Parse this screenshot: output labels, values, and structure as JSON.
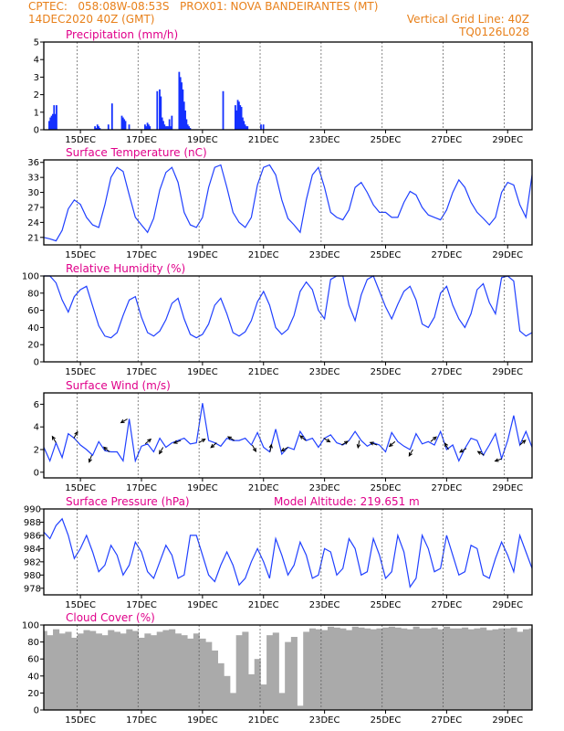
{
  "header": {
    "line1_left": "CPTEC:   058:08W-08:53S   PROX01: NOVA BANDEIRANTES (MT)",
    "line2_left": "14DEC2020 40Z (GMT)",
    "line2_right": "Vertical Grid Line: 40Z",
    "line3_right": "TQ0126L028"
  },
  "x_ticks": [
    "15DEC",
    "17DEC",
    "19DEC",
    "21DEC",
    "23DEC",
    "25DEC",
    "27DEC",
    "29DEC"
  ],
  "colors": {
    "series": "#2040ff",
    "precip": "#1430ff",
    "cloud": "#aaaaaa",
    "title": "#e0008a",
    "header": "#e8801a",
    "grid": "#555555"
  },
  "chart_data": [
    {
      "type": "bar",
      "title": "Precipitation (mm/h)",
      "ylim": [
        0,
        5
      ],
      "yticks": [
        0,
        1,
        2,
        3,
        4,
        5
      ],
      "t": [
        0.45,
        0.55,
        0.65,
        0.75,
        0.85,
        0.95,
        1.05,
        4.2,
        4.3,
        4.4,
        4.5,
        4.6,
        5.3,
        5.6,
        6.4,
        6.5,
        6.6,
        6.7,
        7.0,
        8.3,
        8.4,
        8.5,
        8.6,
        8.7,
        9.3,
        9.5,
        9.6,
        9.7,
        9.8,
        9.9,
        10.0,
        10.1,
        10.2,
        10.3,
        10.4,
        10.5,
        11.1,
        11.2,
        11.3,
        11.4,
        11.5,
        11.6,
        11.7,
        11.8,
        11.9,
        12.0,
        14.7,
        15.7,
        15.8,
        15.9,
        16.0,
        16.1,
        16.2,
        16.3,
        16.4,
        16.5,
        16.6,
        16.7,
        17.8,
        18.0
      ],
      "values": [
        0.5,
        0.7,
        0.8,
        0.9,
        1.4,
        0.9,
        1.4,
        0.2,
        0.1,
        0.3,
        0.2,
        0.1,
        0.3,
        1.5,
        0.8,
        0.7,
        0.6,
        0.5,
        0.3,
        0.3,
        0.2,
        0.4,
        0.3,
        0.2,
        2.2,
        2.3,
        1.9,
        0.7,
        0.5,
        0.3,
        0.2,
        0.2,
        0.2,
        0.6,
        0.2,
        0.8,
        3.3,
        3.0,
        2.7,
        2.3,
        1.6,
        1.1,
        0.6,
        0.3,
        0.2,
        0.1,
        2.2,
        1.4,
        1.1,
        1.7,
        1.6,
        1.4,
        1.3,
        0.7,
        0.5,
        0.3,
        0.2,
        0.2,
        0.3,
        0.3
      ]
    },
    {
      "type": "line",
      "title": "Surface Temperature (nC)",
      "ylim": [
        19.5,
        36.5
      ],
      "yticks": [
        21,
        24,
        27,
        30,
        33,
        36
      ],
      "t": [
        0,
        0.5,
        1.0,
        1.5,
        2.0,
        2.5,
        3.0,
        3.5,
        4.0,
        4.5,
        5.0,
        5.5,
        6.0,
        6.5,
        7.0,
        7.5,
        8.0,
        8.5,
        9.0,
        9.5,
        10.0,
        10.5,
        11.0,
        11.5,
        12.0,
        12.5,
        13.0,
        13.5,
        14.0,
        14.5,
        15.0,
        15.5,
        16.0,
        16.5,
        17.0,
        17.5,
        18.0,
        18.5,
        19.0,
        19.5,
        20.0,
        20.5,
        21.0,
        21.5,
        22.0,
        22.5,
        23.0,
        23.5,
        24.0,
        24.5,
        25.0,
        25.5,
        26.0,
        26.5,
        27.0,
        27.5,
        28.0,
        28.5,
        29.0,
        29.5,
        30.0,
        30.5,
        31.0,
        31.5,
        32.0,
        32.5,
        33.0,
        33.5,
        34.0,
        34.5,
        35.0,
        35.5,
        36.0,
        36.5,
        37.0,
        37.5,
        38.0,
        38.5,
        39.0,
        39.5,
        40.0
      ],
      "values": [
        21.0,
        20.7,
        20.3,
        22.4,
        26.7,
        28.5,
        27.6,
        25.0,
        23.5,
        23.0,
        27.5,
        33.0,
        35.0,
        34.2,
        29.5,
        25.0,
        23.5,
        22.0,
        24.8,
        30.5,
        34.0,
        35.0,
        32.0,
        26.0,
        23.5,
        23.0,
        25.0,
        31.0,
        35.0,
        35.5,
        31.0,
        26.0,
        24.0,
        23.0,
        25.0,
        31.5,
        35.0,
        35.5,
        33.5,
        28.5,
        24.8,
        23.5,
        22.0,
        28.5,
        33.5,
        35.0,
        31.0,
        26.0,
        25.0,
        24.5,
        26.5,
        31.0,
        32.0,
        30.0,
        27.5,
        26.0,
        26.0,
        25.0,
        25.0,
        28.0,
        30.2,
        29.5,
        27.0,
        25.5,
        25.0,
        24.5,
        26.5,
        30.0,
        32.5,
        31.0,
        28.0,
        26.0,
        24.8,
        23.5,
        25.0,
        30.0,
        32.0,
        31.5,
        27.5,
        25.0,
        33.5
      ]
    },
    {
      "type": "line",
      "title": "Relative Humidity (%)",
      "ylim": [
        0,
        100
      ],
      "yticks": [
        0,
        20,
        40,
        60,
        80,
        100
      ],
      "t": [
        0,
        0.5,
        1.0,
        1.5,
        2.0,
        2.5,
        3.0,
        3.5,
        4.0,
        4.5,
        5.0,
        5.5,
        6.0,
        6.5,
        7.0,
        7.5,
        8.0,
        8.5,
        9.0,
        9.5,
        10.0,
        10.5,
        11.0,
        11.5,
        12.0,
        12.5,
        13.0,
        13.5,
        14.0,
        14.5,
        15.0,
        15.5,
        16.0,
        16.5,
        17.0,
        17.5,
        18.0,
        18.5,
        19.0,
        19.5,
        20.0,
        20.5,
        21.0,
        21.5,
        22.0,
        22.5,
        23.0,
        23.5,
        24.0,
        24.5,
        25.0,
        25.5,
        26.0,
        26.5,
        27.0,
        27.5,
        28.0,
        28.5,
        29.0,
        29.5,
        30.0,
        30.5,
        31.0,
        31.5,
        32.0,
        32.5,
        33.0,
        33.5,
        34.0,
        34.5,
        35.0,
        35.5,
        36.0,
        36.5,
        37.0,
        37.5,
        38.0,
        38.5,
        39.0,
        39.5,
        40.0
      ],
      "values": [
        100,
        100,
        92,
        72,
        58,
        76,
        84,
        88,
        65,
        42,
        30,
        28,
        34,
        54,
        72,
        76,
        52,
        34,
        30,
        36,
        49,
        68,
        74,
        50,
        32,
        28,
        32,
        44,
        66,
        74,
        56,
        34,
        30,
        35,
        48,
        70,
        82,
        66,
        40,
        32,
        38,
        54,
        82,
        93,
        84,
        60,
        50,
        96,
        100,
        100,
        66,
        48,
        78,
        96,
        100,
        82,
        64,
        50,
        67,
        82,
        88,
        72,
        44,
        40,
        52,
        80,
        88,
        66,
        50,
        40,
        56,
        84,
        91,
        69,
        56,
        98,
        100,
        94,
        36,
        30,
        34
      ]
    },
    {
      "type": "line",
      "title": "Surface Wind (m/s)",
      "ylim": [
        -0.5,
        7
      ],
      "yticks": [
        0,
        2,
        4,
        6
      ],
      "t": [
        0,
        0.5,
        1.0,
        1.5,
        2.0,
        2.5,
        3.0,
        3.5,
        4.0,
        4.5,
        5.0,
        5.5,
        6.0,
        6.5,
        7.0,
        7.5,
        8.0,
        8.5,
        9.0,
        9.5,
        10.0,
        10.5,
        11.0,
        11.5,
        12.0,
        12.5,
        13.0,
        13.5,
        14.0,
        14.5,
        15.0,
        15.5,
        16.0,
        16.5,
        17.0,
        17.5,
        18.0,
        18.5,
        19.0,
        19.5,
        20.0,
        20.5,
        21.0,
        21.5,
        22.0,
        22.5,
        23.0,
        23.5,
        24.0,
        24.5,
        25.0,
        25.5,
        26.0,
        26.5,
        27.0,
        27.5,
        28.0,
        28.5,
        29.0,
        29.5,
        30.0,
        30.5,
        31.0,
        31.5,
        32.0,
        32.5,
        33.0,
        33.5,
        34.0,
        34.5,
        35.0,
        35.5,
        36.0,
        36.5,
        37.0,
        37.5,
        38.0,
        38.5,
        39.0,
        39.5,
        40.0
      ],
      "values": [
        2.2,
        1.0,
        2.6,
        1.3,
        3.4,
        3.0,
        2.4,
        2.0,
        1.5,
        2.7,
        1.9,
        1.8,
        1.8,
        1.0,
        4.7,
        1.0,
        2.3,
        2.5,
        1.8,
        3.0,
        2.2,
        2.6,
        2.8,
        3.0,
        2.5,
        2.6,
        6.1,
        2.8,
        2.6,
        2.3,
        3.0,
        2.8,
        2.8,
        3.0,
        2.4,
        3.5,
        2.2,
        1.8,
        3.8,
        1.6,
        2.2,
        2.0,
        3.6,
        2.8,
        3.0,
        2.2,
        3.0,
        3.3,
        2.6,
        2.4,
        2.8,
        3.6,
        2.8,
        2.3,
        2.6,
        2.4,
        1.8,
        3.5,
        2.7,
        2.3,
        2.0,
        3.4,
        2.5,
        2.7,
        2.4,
        3.6,
        2.0,
        2.4,
        1.0,
        2.1,
        3.0,
        2.8,
        1.5,
        2.4,
        3.4,
        1.2,
        2.8,
        5.0,
        2.4,
        3.6,
        2.2
      ]
    },
    {
      "type": "line",
      "title": "Surface Pressure (hPa)",
      "subtitle": "Model Altitude: 219.651  m",
      "ylim": [
        977,
        990
      ],
      "yticks": [
        978,
        980,
        982,
        984,
        986,
        988,
        990
      ],
      "t": [
        0,
        0.5,
        1.0,
        1.5,
        2.0,
        2.5,
        3.0,
        3.5,
        4.0,
        4.5,
        5.0,
        5.5,
        6.0,
        6.5,
        7.0,
        7.5,
        8.0,
        8.5,
        9.0,
        9.5,
        10.0,
        10.5,
        11.0,
        11.5,
        12.0,
        12.5,
        13.0,
        13.5,
        14.0,
        14.5,
        15.0,
        15.5,
        16.0,
        16.5,
        17.0,
        17.5,
        18.0,
        18.5,
        19.0,
        19.5,
        20.0,
        20.5,
        21.0,
        21.5,
        22.0,
        22.5,
        23.0,
        23.5,
        24.0,
        24.5,
        25.0,
        25.5,
        26.0,
        26.5,
        27.0,
        27.5,
        28.0,
        28.5,
        29.0,
        29.5,
        30.0,
        30.5,
        31.0,
        31.5,
        32.0,
        32.5,
        33.0,
        33.5,
        34.0,
        34.5,
        35.0,
        35.5,
        36.0,
        36.5,
        37.0,
        37.5,
        38.0,
        38.5,
        39.0,
        39.5,
        40.0
      ],
      "values": [
        986.5,
        985.5,
        987.5,
        988.5,
        986.0,
        982.5,
        984.0,
        986.0,
        983.5,
        980.5,
        981.5,
        984.5,
        983.0,
        980.0,
        981.5,
        985.0,
        983.5,
        980.5,
        979.5,
        982.0,
        984.5,
        983.0,
        979.5,
        980.0,
        986.0,
        986.0,
        983.0,
        980.0,
        979.0,
        981.5,
        983.5,
        981.5,
        978.5,
        979.5,
        982.0,
        984.0,
        982.0,
        979.5,
        985.5,
        983.0,
        980.0,
        981.5,
        985.0,
        983.0,
        979.5,
        980.0,
        984.0,
        983.5,
        980.0,
        981.0,
        985.5,
        984.0,
        980.0,
        980.5,
        985.5,
        983.0,
        979.5,
        980.5,
        986.0,
        983.5,
        978.2,
        979.5,
        986.0,
        984.0,
        980.5,
        981.0,
        986.0,
        983.0,
        980.0,
        980.5,
        984.5,
        984.0,
        980.0,
        979.5,
        982.5,
        985.0,
        983.0,
        980.5,
        986.0,
        983.5,
        981.0
      ]
    },
    {
      "type": "bar",
      "title": "Cloud Cover (%)",
      "ylim": [
        0,
        100
      ],
      "yticks": [
        0,
        20,
        40,
        60,
        80,
        100
      ],
      "t": [
        0,
        0.5,
        1.0,
        1.5,
        2.0,
        2.5,
        3.0,
        3.5,
        4.0,
        4.5,
        5.0,
        5.5,
        6.0,
        6.5,
        7.0,
        7.5,
        8.0,
        8.5,
        9.0,
        9.5,
        10.0,
        10.5,
        11.0,
        11.5,
        12.0,
        12.5,
        13.0,
        13.5,
        14.0,
        14.5,
        15.0,
        15.5,
        16.0,
        16.5,
        17.0,
        17.5,
        18.0,
        18.5,
        19.0,
        19.5,
        20.0,
        20.5,
        21.0,
        21.5,
        22.0,
        22.5,
        23.0,
        23.5,
        24.0,
        24.5,
        25.0,
        25.5,
        26.0,
        26.5,
        27.0,
        27.5,
        28.0,
        28.5,
        29.0,
        29.5,
        30.0,
        30.5,
        31.0,
        31.5,
        32.0,
        32.5,
        33.0,
        33.5,
        34.0,
        34.5,
        35.0,
        35.5,
        36.0,
        36.5,
        37.0,
        37.5,
        38.0,
        38.5,
        39.0,
        39.5,
        40.0
      ],
      "values": [
        93,
        88,
        95,
        90,
        92,
        85,
        90,
        94,
        93,
        90,
        88,
        94,
        92,
        90,
        95,
        93,
        85,
        90,
        88,
        92,
        94,
        95,
        90,
        88,
        84,
        90,
        84,
        80,
        70,
        55,
        40,
        20,
        88,
        92,
        42,
        60,
        30,
        88,
        91,
        20,
        80,
        86,
        5,
        92,
        96,
        95,
        94,
        98,
        97,
        96,
        94,
        98,
        97,
        96,
        95,
        96,
        97,
        98,
        97,
        96,
        95,
        98,
        96,
        96,
        97,
        95,
        98,
        96,
        96,
        97,
        95,
        96,
        97,
        94,
        95,
        96,
        96,
        97,
        92,
        95,
        96
      ]
    }
  ]
}
